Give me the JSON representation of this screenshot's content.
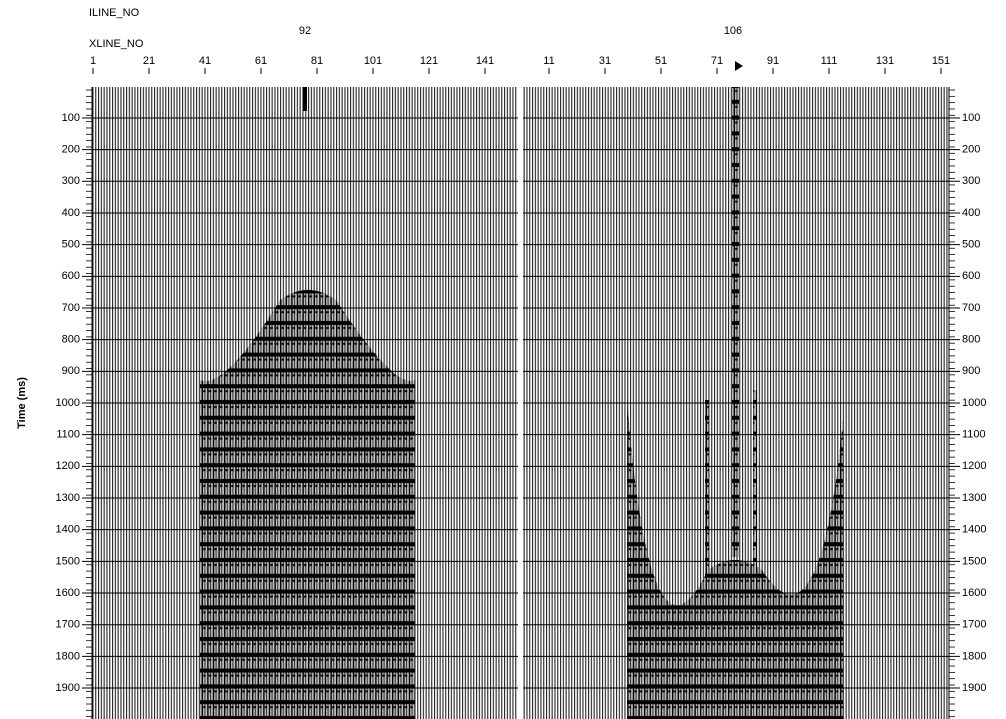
{
  "header": {
    "iline_label": "ILINE_NO",
    "xline_label": "XLINE_NO"
  },
  "panels": [
    {
      "iline": "92",
      "xline_ticks": [
        1,
        21,
        41,
        61,
        81,
        101,
        121,
        141
      ]
    },
    {
      "iline": "106",
      "xline_ticks": [
        11,
        31,
        51,
        71,
        91,
        111,
        131,
        151
      ]
    }
  ],
  "time_axis": {
    "title": "Time (ms)",
    "ticks": [
      100,
      200,
      300,
      400,
      500,
      600,
      700,
      800,
      900,
      1000,
      1100,
      1200,
      1300,
      1400,
      1500,
      1600,
      1700,
      1800,
      1900
    ]
  }
}
